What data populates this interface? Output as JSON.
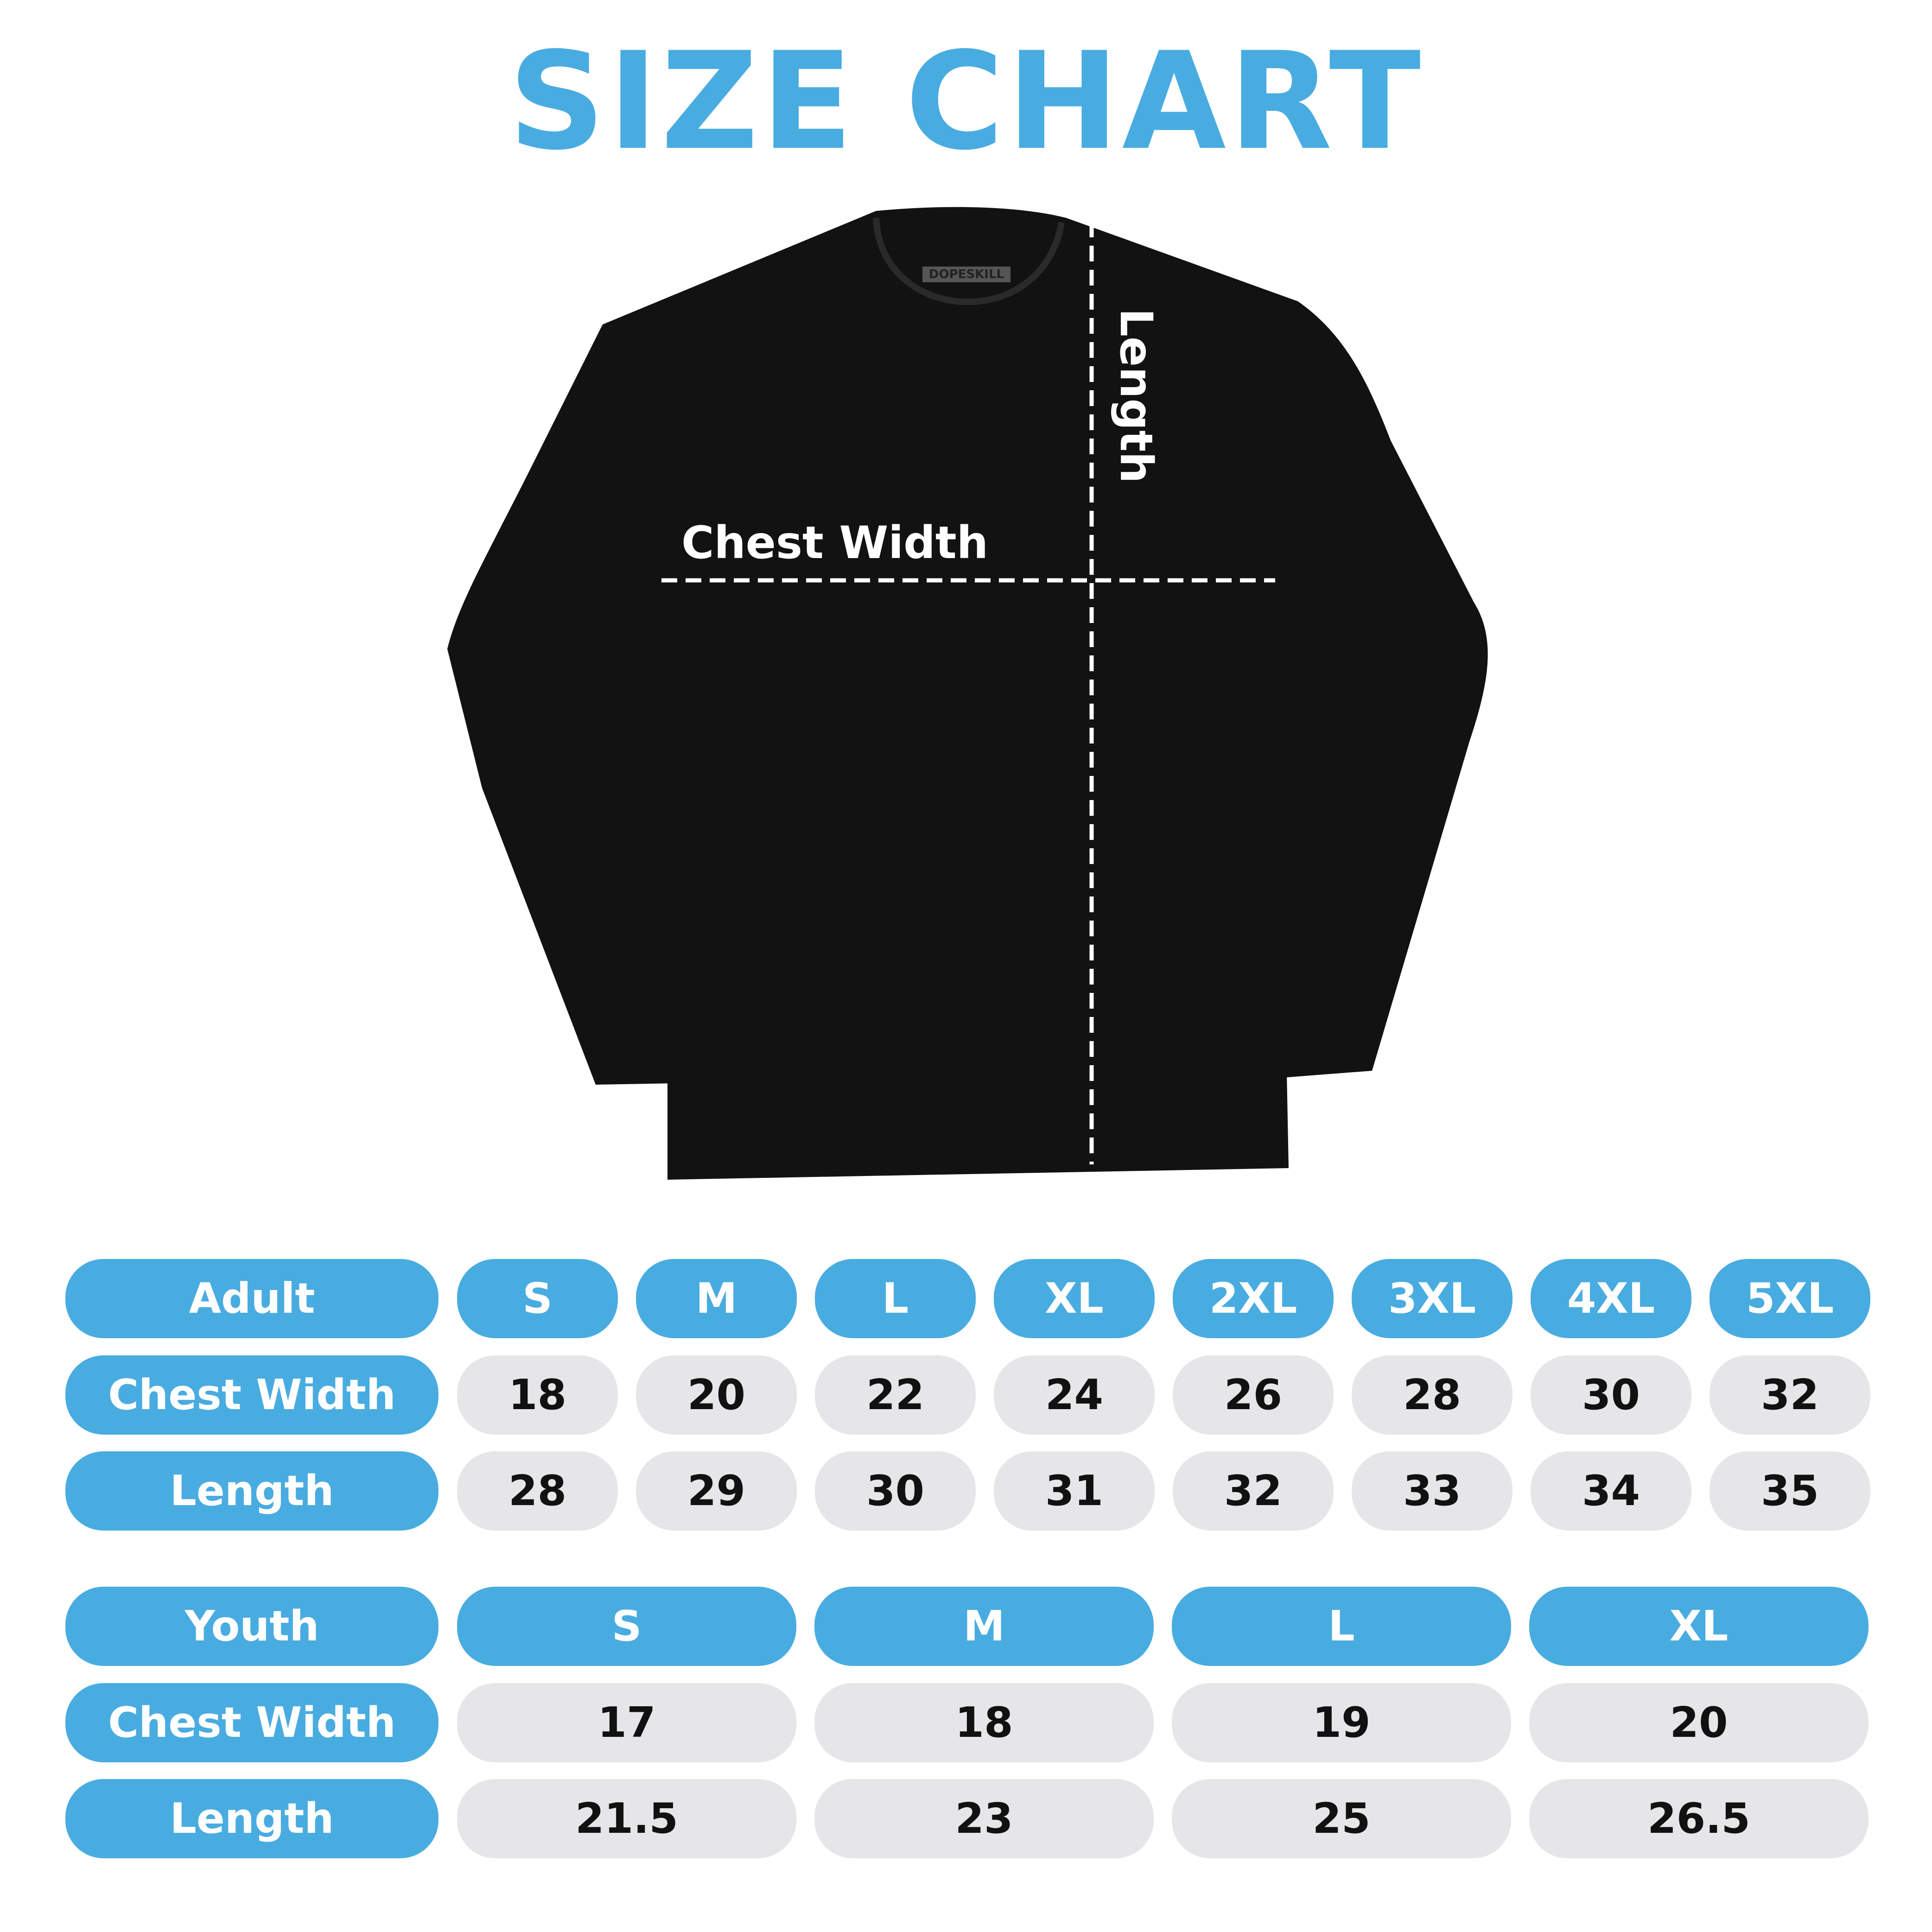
{
  "title": "SIZE CHART",
  "colors": {
    "accent": "#49ACE1",
    "cell_gray": "#E6E6E8",
    "shirt": "#121212"
  },
  "shirt": {
    "brand_tag": "DOPESKILL",
    "chest_label": "Chest Width",
    "length_label": "Length"
  },
  "adult": {
    "header": "Adult",
    "sizes": [
      "S",
      "M",
      "L",
      "XL",
      "2XL",
      "3XL",
      "4XL",
      "5XL"
    ],
    "rows": [
      {
        "label": "Chest Width",
        "values": [
          "18",
          "20",
          "22",
          "24",
          "26",
          "28",
          "30",
          "32"
        ]
      },
      {
        "label": "Length",
        "values": [
          "28",
          "29",
          "30",
          "31",
          "32",
          "33",
          "34",
          "35"
        ]
      }
    ]
  },
  "youth": {
    "header": "Youth",
    "sizes": [
      "S",
      "M",
      "L",
      "XL"
    ],
    "rows": [
      {
        "label": "Chest Width",
        "values": [
          "17",
          "18",
          "19",
          "20"
        ]
      },
      {
        "label": "Length",
        "values": [
          "21.5",
          "23",
          "25",
          "26.5"
        ]
      }
    ]
  }
}
